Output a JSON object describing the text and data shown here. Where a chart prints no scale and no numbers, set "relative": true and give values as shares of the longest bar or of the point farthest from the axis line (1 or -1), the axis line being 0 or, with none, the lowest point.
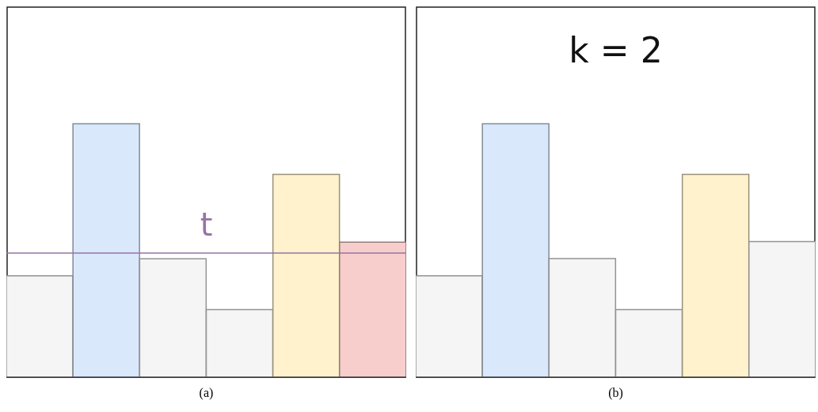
{
  "chart_data": [
    {
      "type": "bar",
      "relative": true,
      "xlabel": "(a)",
      "categories": [
        null,
        null,
        null,
        null,
        null,
        null
      ],
      "values": [
        0.4,
        1,
        0.467,
        0.267,
        0.8,
        0.533
      ],
      "colors": [
        "#f5f5f5",
        "#dae8fc",
        "#f5f5f5",
        "#f5f5f5",
        "#fff2cc",
        "#f8cecc"
      ],
      "tick_labels": false,
      "grid": false,
      "ref_lines": [
        {
          "axis": "y",
          "value": 0.49,
          "label": "t",
          "color": "#9673a6"
        }
      ]
    },
    {
      "type": "bar",
      "relative": true,
      "title": "k = 2",
      "xlabel": "(b)",
      "categories": [
        null,
        null,
        null,
        null,
        null,
        null
      ],
      "values": [
        0.4,
        1,
        0.468,
        0.267,
        0.8,
        0.535
      ],
      "colors": [
        "#f5f5f5",
        "#dae8fc",
        "#f5f5f5",
        "#f5f5f5",
        "#fff2cc",
        "#f5f5f5"
      ],
      "tick_labels": false,
      "grid": false
    }
  ]
}
